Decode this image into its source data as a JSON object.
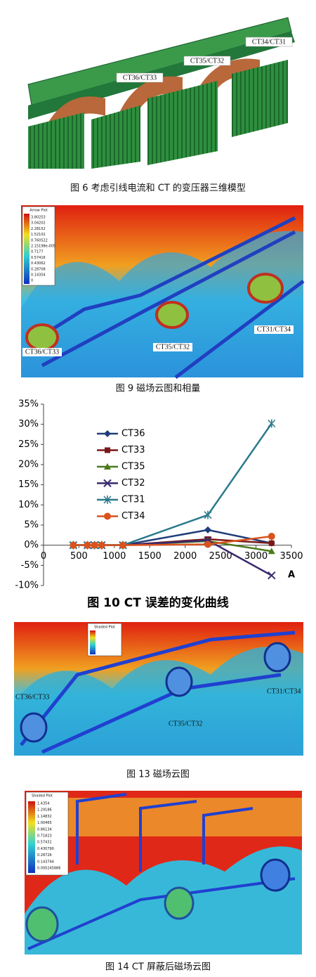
{
  "figure6": {
    "labels": [
      "CT36/CT33",
      "CT35/CT32",
      "CT34/CT31"
    ],
    "caption": "图 6   考虑引线电流和 CT 的变压器三维模型"
  },
  "figure9": {
    "legend_title": "Arrow Plot",
    "legend_values": [
      "3.80253",
      "3.04202",
      "2.28152",
      "1.52102",
      "0.760522",
      "2.15198e-005",
      "0.7177",
      "0.57416",
      "0.43062",
      "0.28708",
      "0.14354",
      "0"
    ],
    "labels": [
      "CT36/CT33",
      "CT35/CT32",
      "CT31/CT34"
    ],
    "caption": "图 9   磁场云图和相量"
  },
  "chart_data": {
    "type": "line",
    "caption": "图 10   CT 误差的变化曲线",
    "annotation": "A",
    "x": [
      420,
      620,
      720,
      820,
      1120,
      2320,
      3220
    ],
    "series": [
      {
        "name": "CT36",
        "color": "#1f3d7a",
        "marker": "diamond",
        "values": [
          0,
          0,
          0,
          0,
          0,
          3.8,
          0.5
        ]
      },
      {
        "name": "CT33",
        "color": "#7a1818",
        "marker": "square",
        "values": [
          0,
          0,
          0,
          0,
          0,
          1.5,
          0.5
        ]
      },
      {
        "name": "CT35",
        "color": "#4a7a1a",
        "marker": "triangle",
        "values": [
          0,
          0,
          0,
          0,
          0,
          1.0,
          -1.5
        ]
      },
      {
        "name": "CT32",
        "color": "#3a2a6e",
        "marker": "x",
        "values": [
          0,
          0,
          0,
          0,
          0,
          1.2,
          -7.5
        ]
      },
      {
        "name": "CT31",
        "color": "#2a7a8c",
        "marker": "star",
        "values": [
          0,
          0,
          0,
          0,
          0,
          7.5,
          30.2
        ]
      },
      {
        "name": "CT34",
        "color": "#d9531e",
        "marker": "circle",
        "values": [
          0,
          0,
          0,
          0,
          0,
          0.2,
          2.2
        ]
      }
    ],
    "xlim": [
      0,
      3500
    ],
    "xticks": [
      0,
      500,
      1000,
      1500,
      2000,
      2500,
      3000,
      3500
    ],
    "ylim": [
      -10,
      35
    ],
    "yticks": [
      {
        "value": -10,
        "label": "-10%"
      },
      {
        "value": -5,
        "label": "-5%"
      },
      {
        "value": 0,
        "label": "0%"
      },
      {
        "value": 5,
        "label": "5%"
      },
      {
        "value": 10,
        "label": "10%"
      },
      {
        "value": 15,
        "label": "15%"
      },
      {
        "value": 20,
        "label": "20%"
      },
      {
        "value": 25,
        "label": "25%"
      },
      {
        "value": 30,
        "label": "30%"
      },
      {
        "value": 35,
        "label": "35%"
      }
    ],
    "grid": false
  },
  "figure13": {
    "legend_title": "Shaded Plot",
    "labels": [
      "CT36/CT33",
      "CT35/CT32",
      "CT31/CT34"
    ],
    "caption": "图 13   磁场云图"
  },
  "figure14": {
    "legend_title": "Shaded Plot",
    "legend_values": [
      "1.4354",
      "1.29186",
      "1.14832",
      "1.00465",
      "0.86134",
      "0.71823",
      "0.57431",
      "0.430790",
      "0.28726",
      "0.143744",
      "0.000245886"
    ],
    "caption": "图 14   CT 屏蔽后磁场云图"
  }
}
